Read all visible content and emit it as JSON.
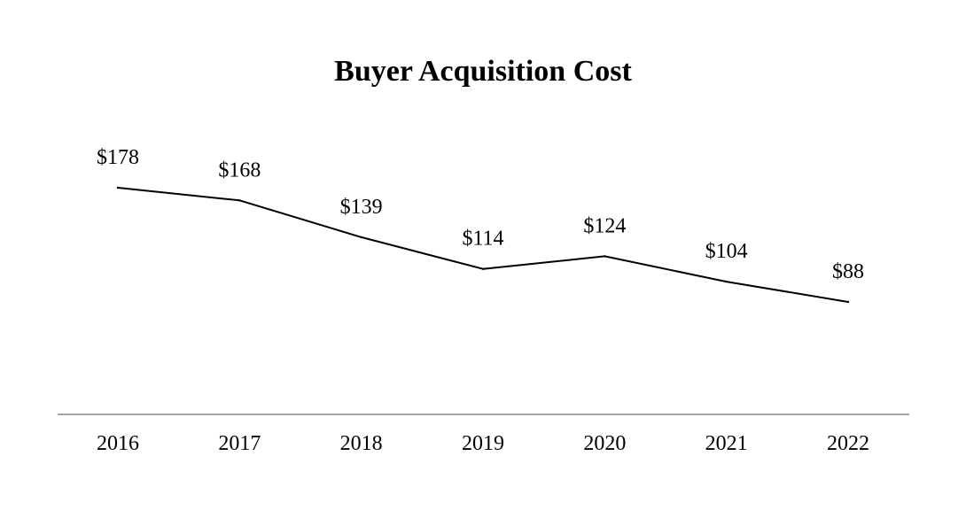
{
  "chart_data": {
    "type": "line",
    "title": "Buyer Acquisition Cost",
    "xlabel": "",
    "ylabel": "",
    "categories": [
      "2016",
      "2017",
      "2018",
      "2019",
      "2020",
      "2021",
      "2022"
    ],
    "values": [
      178,
      168,
      139,
      114,
      124,
      104,
      88
    ],
    "data_labels": [
      "$178",
      "$168",
      "$139",
      "$114",
      "$124",
      "$104",
      "$88"
    ],
    "grid": false,
    "y_axis_visible": false,
    "colors": {
      "line": "#000000",
      "axis": "#a6a6a6",
      "background": "#ffffff"
    }
  }
}
